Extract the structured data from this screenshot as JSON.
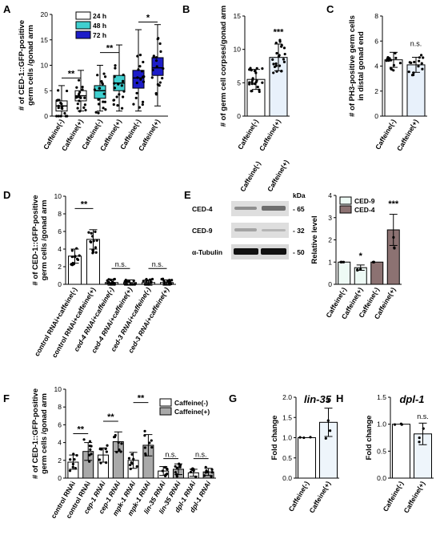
{
  "chart_data": [
    {
      "id": "A",
      "label": "A",
      "type": "box",
      "ylabel": [
        "# of CED-1::GFP-positive",
        "germ cells /gonad arm"
      ],
      "ylim": [
        0,
        20
      ],
      "yticks": [
        0,
        5,
        10,
        15,
        20
      ],
      "categories": [
        "Caffeine(-)",
        "Caffeine(+)",
        "Caffeine(-)",
        "Caffeine(+)",
        "Caffeine(-)",
        "Caffeine(+)"
      ],
      "groups": [
        "24 h",
        "24 h",
        "48 h",
        "48 h",
        "72 h",
        "72 h"
      ],
      "legend": [
        {
          "name": "24 h",
          "color": "#ffffff"
        },
        {
          "name": "48 h",
          "color": "#40d0d0"
        },
        {
          "name": "72 h",
          "color": "#1c1cc8"
        }
      ],
      "boxes": [
        {
          "min": 0,
          "q1": 1,
          "median": 2,
          "q3": 3,
          "max": 6,
          "color": "#ffffff"
        },
        {
          "min": 1,
          "q1": 3,
          "median": 4,
          "q3": 5,
          "max": 9,
          "color": "#ffffff"
        },
        {
          "min": 1,
          "q1": 3.5,
          "median": 5,
          "q3": 6,
          "max": 10,
          "color": "#40d0d0"
        },
        {
          "min": 1,
          "q1": 5,
          "median": 6.5,
          "q3": 8,
          "max": 14,
          "color": "#40d0d0"
        },
        {
          "min": 1,
          "q1": 5.5,
          "median": 7.5,
          "q3": 9,
          "max": 17,
          "color": "#1c1cc8"
        },
        {
          "min": 2,
          "q1": 8,
          "median": 9.5,
          "q3": 11.5,
          "max": 18,
          "color": "#1c1cc8"
        }
      ],
      "sig": [
        {
          "a": 0,
          "b": 1,
          "y": 7.5,
          "text": "**"
        },
        {
          "a": 2,
          "b": 3,
          "y": 12.5,
          "text": "**"
        },
        {
          "a": 4,
          "b": 5,
          "y": 18.5,
          "text": "*"
        }
      ]
    },
    {
      "id": "B",
      "label": "B",
      "type": "bar",
      "ylabel": [
        "# of germ cell corpses/gonad arm"
      ],
      "ylim": [
        0,
        15
      ],
      "yticks": [
        0,
        5,
        10,
        15
      ],
      "categories": [
        "Caffeine(-)",
        "Caffeine(+)"
      ],
      "values": [
        5.5,
        8.8
      ],
      "errors": [
        1.5,
        2.0
      ],
      "colors": [
        "#ffffff",
        "#e8f1fb"
      ],
      "sig": [
        {
          "bar": 1,
          "text": "***",
          "y": 12.2
        }
      ]
    },
    {
      "id": "C",
      "label": "C",
      "type": "bar",
      "ylabel": [
        "# of PH3-positive germ cells",
        "in distal gonad end"
      ],
      "ylim": [
        0,
        8
      ],
      "yticks": [
        0,
        2,
        4,
        6,
        8
      ],
      "categories": [
        "Caffeine(-)",
        "Caffeine(+)"
      ],
      "values": [
        4.5,
        4.1
      ],
      "errors": [
        0.6,
        0.6
      ],
      "colors": [
        "#ffffff",
        "#e8f1fb"
      ],
      "sig": [
        {
          "bar": 1,
          "text": "n.s.",
          "y": 5.6
        }
      ]
    },
    {
      "id": "D",
      "label": "D",
      "type": "bar",
      "ylabel": [
        "# of CED-1::GFP-positive",
        "germ cells /gonad arm"
      ],
      "ylim": [
        0,
        10
      ],
      "yticks": [
        0,
        2,
        4,
        6,
        8,
        10
      ],
      "categories": [
        "control RNAi+caffeine(-)",
        "control RNAi+caffeine(+)",
        "ced-4 RNAi+caffeine(-)",
        "ced-4 RNAi+caffeine(+)",
        "ced-3 RNAi+caffeine(-)",
        "ced-3 RNAi+caffeine(+)"
      ],
      "values": [
        3.2,
        5.1,
        0.2,
        0.2,
        0.2,
        0.2
      ],
      "errors": [
        0.8,
        1.1,
        0.3,
        0.3,
        0.3,
        0.3
      ],
      "sig": [
        {
          "a": 0,
          "b": 1,
          "y": 8.6,
          "text": "**"
        },
        {
          "a": 2,
          "b": 3,
          "y": 1.8,
          "text": "n.s."
        },
        {
          "a": 4,
          "b": 5,
          "y": 1.8,
          "text": "n.s."
        }
      ]
    },
    {
      "id": "E",
      "label": "E",
      "type": "bar",
      "ylabel": [
        "Relative level"
      ],
      "ylim": [
        0,
        4
      ],
      "yticks": [
        0,
        1,
        2,
        3,
        4
      ],
      "categories": [
        "Caffeine(-)",
        "Caffeine(+)",
        "Caffeine(-)",
        "Caffeine(+)"
      ],
      "series": [
        {
          "name": "CED-9",
          "color": "#eefaf5"
        },
        {
          "name": "CED-4",
          "color": "#8c7272"
        }
      ],
      "series_index": [
        0,
        0,
        1,
        1
      ],
      "values": [
        1.0,
        0.75,
        1.0,
        2.45
      ],
      "errors": [
        0,
        0.12,
        0,
        0.7
      ],
      "sig": [
        {
          "bar": 1,
          "text": "*",
          "y": 1.15
        },
        {
          "bar": 3,
          "text": "***",
          "y": 3.5
        }
      ],
      "blot": {
        "lanes": [
          "Caffeine(-)",
          "Caffeine(+)"
        ],
        "unit": "kDa",
        "rows": [
          {
            "name": "CED-4",
            "kda": "- 65"
          },
          {
            "name": "CED-9",
            "kda": "- 32"
          },
          {
            "name": "α-Tubulin",
            "kda": "- 50"
          }
        ]
      }
    },
    {
      "id": "F",
      "label": "F",
      "type": "bar",
      "ylabel": [
        "# of CED-1::GFP-positive",
        "germ cells /gonad arm"
      ],
      "ylim": [
        0,
        10
      ],
      "yticks": [
        0,
        2,
        4,
        6,
        8,
        10
      ],
      "categories": [
        "control RNAi",
        "control RNAi",
        "cep-1 RNAi",
        "cep-1 RNAi",
        "mpk-1 RNAi",
        "mpk-1 RNAi",
        "lin-35 RNAi",
        "lin-35 RNAi",
        "dpl-1 RNAi",
        "dpl-1 RNAi"
      ],
      "series": [
        {
          "name": "Caffeine(-)",
          "color": "#ffffff"
        },
        {
          "name": "Caffeine(+)",
          "color": "#a9a9a9"
        }
      ],
      "values": [
        1.8,
        3.0,
        2.6,
        4.1,
        2.0,
        3.7,
        0.8,
        1.0,
        0.6,
        0.7
      ],
      "errors": [
        0.8,
        1.0,
        0.8,
        1.1,
        0.9,
        1.2,
        0.5,
        0.6,
        0.4,
        0.4
      ],
      "sig": [
        {
          "a": 0,
          "b": 1,
          "y": 5.0,
          "text": "**"
        },
        {
          "a": 2,
          "b": 3,
          "y": 6.4,
          "text": "**"
        },
        {
          "a": 4,
          "b": 5,
          "y": 8.5,
          "text": "**"
        },
        {
          "a": 6,
          "b": 7,
          "y": 2.2,
          "text": "n.s."
        },
        {
          "a": 8,
          "b": 9,
          "y": 2.2,
          "text": "n.s."
        }
      ]
    },
    {
      "id": "G",
      "label": "G",
      "type": "bar",
      "title": "lin-35",
      "ylabel": [
        "Fold change"
      ],
      "ylim": [
        0,
        2.0
      ],
      "yticks": [
        0.0,
        0.5,
        1.0,
        1.5,
        2.0
      ],
      "categories": [
        "Caffeine(-)",
        "Caffeine(+)"
      ],
      "values": [
        1.0,
        1.38
      ],
      "errors": [
        0.01,
        0.35
      ],
      "colors": [
        "#ffffff",
        "#eef5fb"
      ],
      "sig": [
        {
          "bar": 1,
          "text": "*",
          "y": 1.8
        }
      ]
    },
    {
      "id": "H",
      "label": "H",
      "type": "bar",
      "title": "dpl-1",
      "ylabel": [
        "Fold change"
      ],
      "ylim": [
        0,
        1.5
      ],
      "yticks": [
        0.0,
        0.5,
        1.0,
        1.5
      ],
      "categories": [
        "Caffeine(-)",
        "Caffeine(+)"
      ],
      "values": [
        1.0,
        0.82
      ],
      "errors": [
        0.01,
        0.2
      ],
      "colors": [
        "#ffffff",
        "#eef5fb"
      ],
      "sig": [
        {
          "bar": 1,
          "text": "n.s.",
          "y": 1.1
        }
      ]
    }
  ]
}
